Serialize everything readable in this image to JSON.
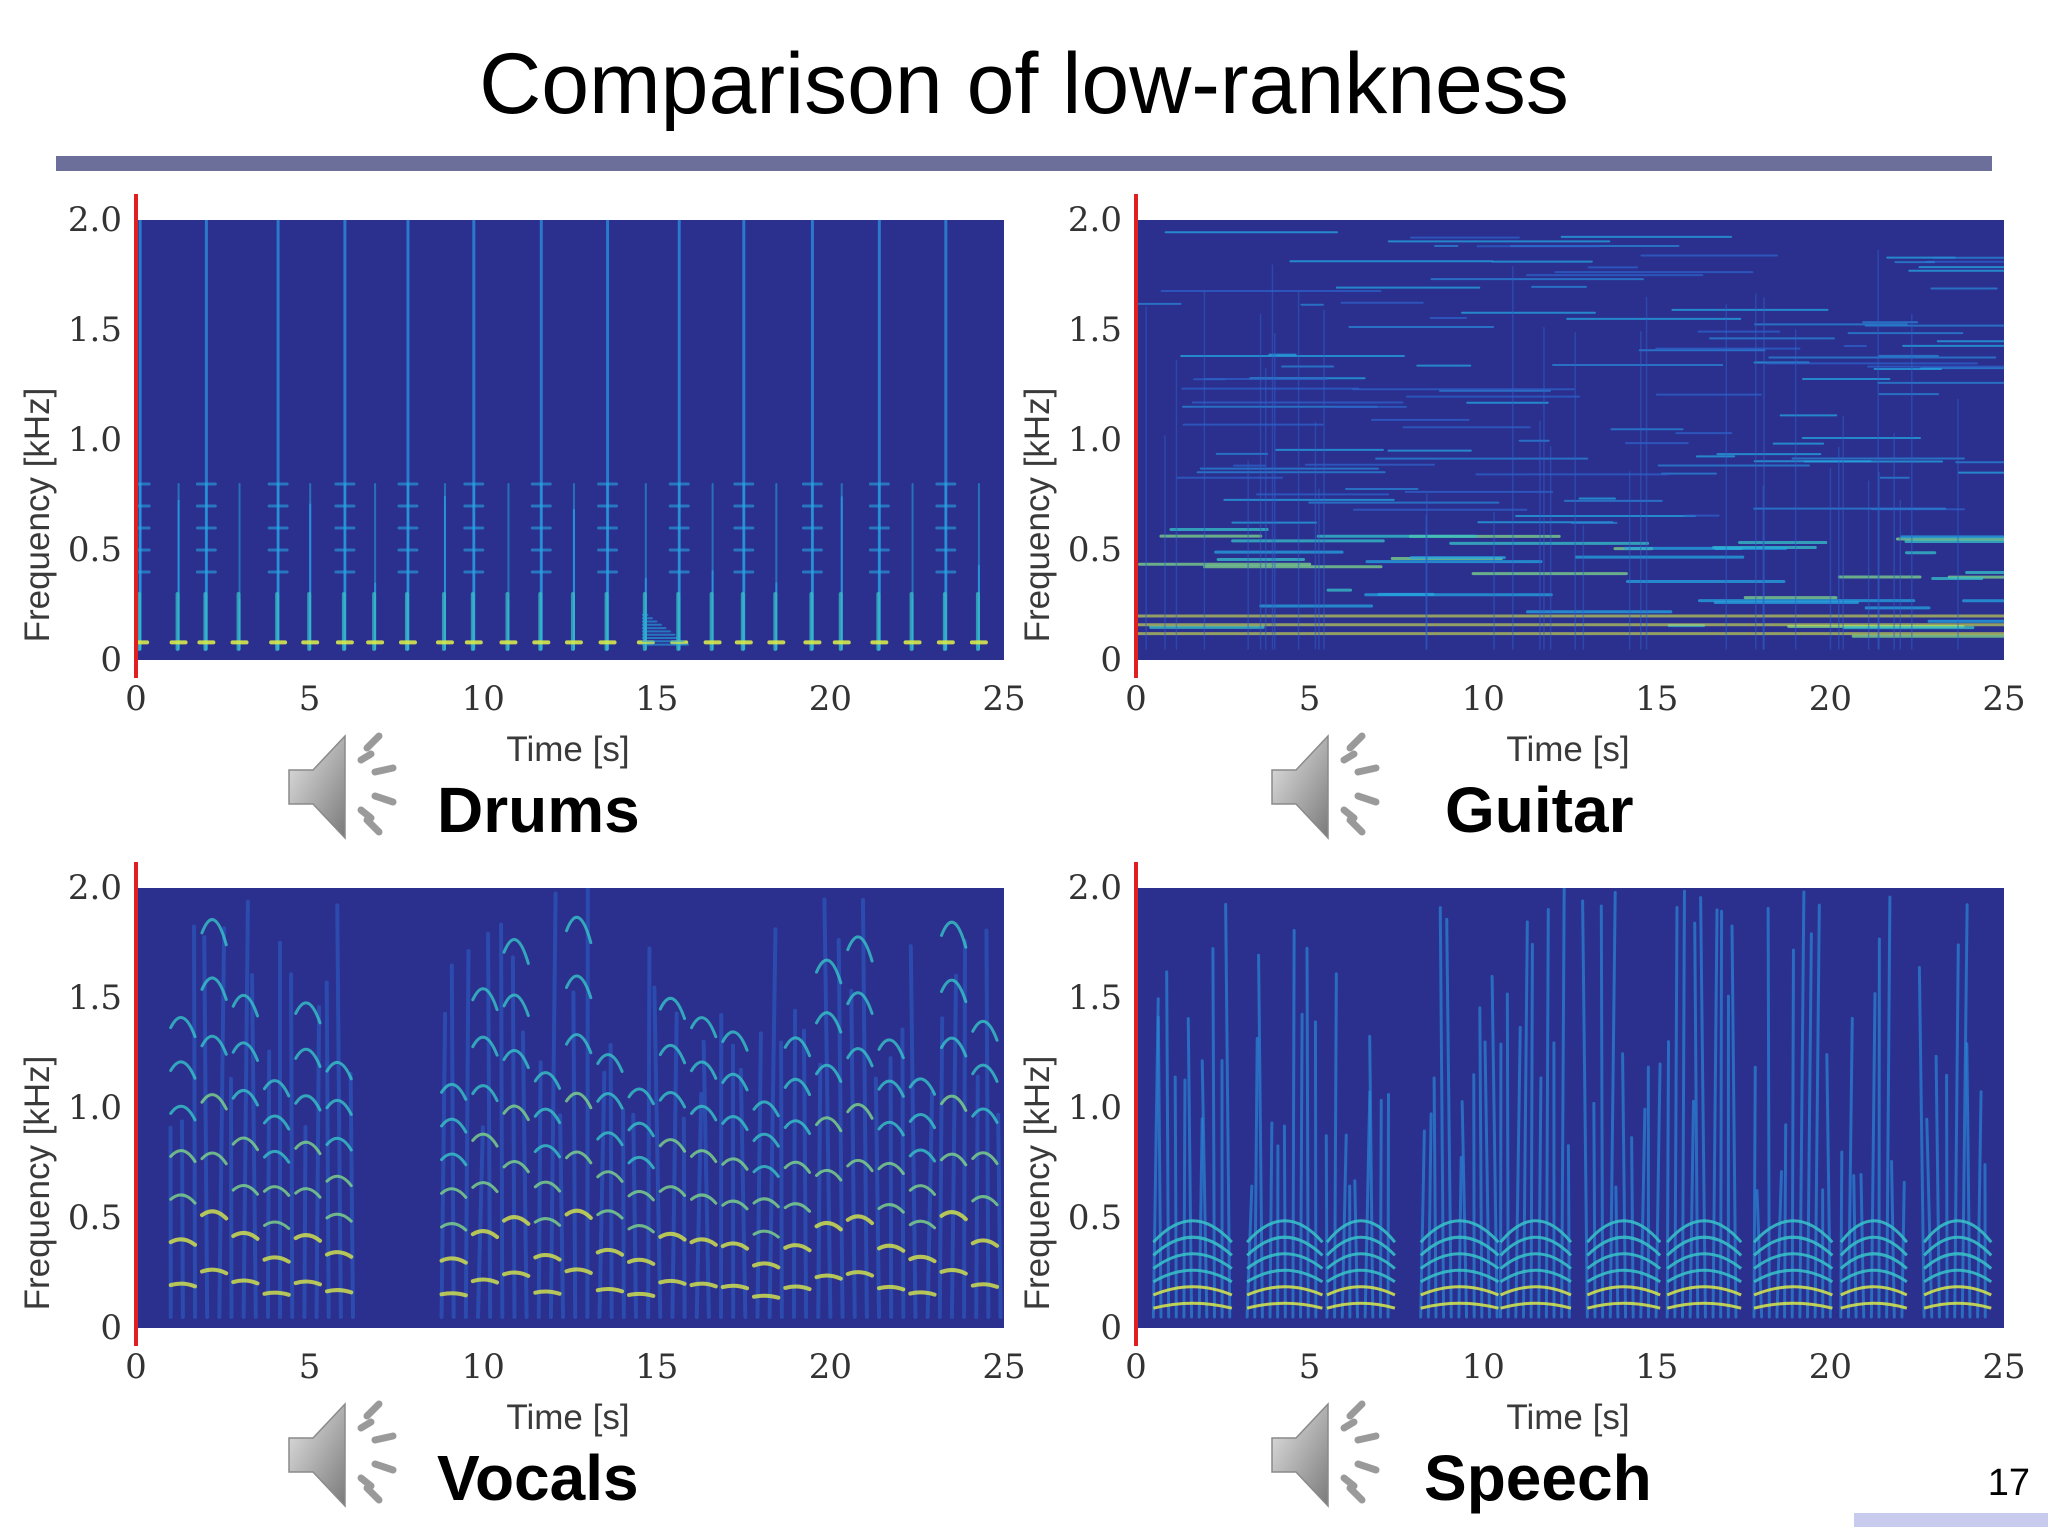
{
  "slide": {
    "title": "Comparison of low-rankness",
    "page_number": "17"
  },
  "colors": {
    "title_rule": "#6b6f99",
    "spectrogram_background": "#2b2f8e",
    "playhead": "#e02020",
    "corner_bar": "#c8cbee"
  },
  "icons": {
    "speaker": "speaker-icon"
  },
  "panels": [
    {
      "label": "Drums",
      "chart_data": {
        "type": "heatmap",
        "pattern": "drums",
        "xlabel": "Time [s]",
        "ylabel": "Frequency [kHz]",
        "xlim": [
          0,
          25
        ],
        "ylim": [
          0,
          2.0
        ],
        "xticks": [
          "0",
          "5",
          "10",
          "15",
          "20",
          "25"
        ],
        "yticks": [
          "0",
          "0.5",
          "1.0",
          "1.5",
          "2.0"
        ]
      }
    },
    {
      "label": "Guitar",
      "chart_data": {
        "type": "heatmap",
        "pattern": "guitar",
        "xlabel": "Time [s]",
        "ylabel": "Frequency [kHz]",
        "xlim": [
          0,
          25
        ],
        "ylim": [
          0,
          2.0
        ],
        "xticks": [
          "0",
          "5",
          "10",
          "15",
          "20",
          "25"
        ],
        "yticks": [
          "0",
          "0.5",
          "1.0",
          "1.5",
          "2.0"
        ]
      }
    },
    {
      "label": "Vocals",
      "chart_data": {
        "type": "heatmap",
        "pattern": "vocals",
        "xlabel": "Time [s]",
        "ylabel": "Frequency [kHz]",
        "xlim": [
          0,
          25
        ],
        "ylim": [
          0,
          2.0
        ],
        "xticks": [
          "0",
          "5",
          "10",
          "15",
          "20",
          "25"
        ],
        "yticks": [
          "0",
          "0.5",
          "1.0",
          "1.5",
          "2.0"
        ]
      }
    },
    {
      "label": "Speech",
      "chart_data": {
        "type": "heatmap",
        "pattern": "speech",
        "xlabel": "Time [s]",
        "ylabel": "Frequency [kHz]",
        "xlim": [
          0,
          25
        ],
        "ylim": [
          0,
          2.0
        ],
        "xticks": [
          "0",
          "5",
          "10",
          "15",
          "20",
          "25"
        ],
        "yticks": [
          "0",
          "0.5",
          "1.0",
          "1.5",
          "2.0"
        ]
      }
    }
  ]
}
